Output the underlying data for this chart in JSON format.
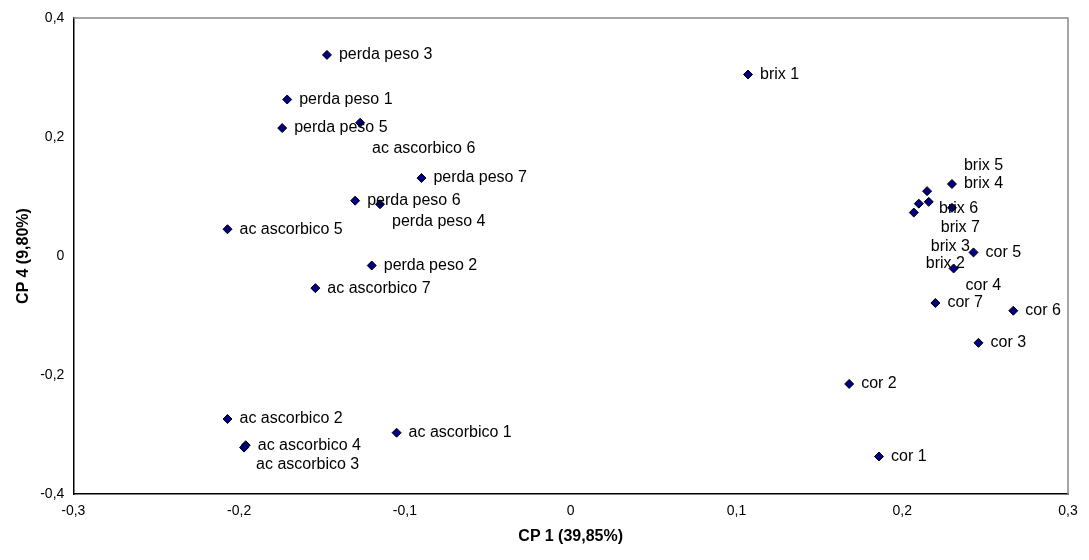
{
  "chart_data": {
    "type": "scatter",
    "xlabel": "CP 1 (39,85%)",
    "ylabel": "CP 4 (9,80%)",
    "series": [
      {
        "color": "#000080",
        "x": [
          -0.147,
          -0.171,
          -0.174,
          -0.127,
          -0.09,
          -0.13,
          -0.115,
          -0.207,
          -0.12,
          -0.154,
          0.107,
          0.23,
          0.215,
          0.216,
          0.21,
          0.207,
          0.23,
          0.243,
          0.231,
          0.22,
          0.267,
          0.246,
          0.168,
          0.186,
          -0.207,
          -0.196,
          -0.197,
          -0.105
        ],
        "values": [
          0.338,
          0.263,
          0.215,
          0.224,
          0.131,
          0.093,
          0.087,
          0.045,
          -0.016,
          -0.054,
          0.305,
          0.121,
          0.109,
          0.091,
          0.088,
          0.073,
          0.081,
          0.006,
          -0.021,
          -0.079,
          -0.092,
          -0.146,
          -0.215,
          -0.337,
          -0.274,
          -0.318,
          -0.322,
          -0.297
        ]
      }
    ],
    "annotations": [
      {
        "text": "perda peso 3",
        "x": -0.147,
        "y": 0.338
      },
      {
        "text": "perda peso 1",
        "x": -0.171,
        "y": 0.263
      },
      {
        "text": "perda peso 5",
        "x": -0.174,
        "y": 0.215
      },
      {
        "text": "ac ascorbico 6",
        "x": -0.127,
        "y": 0.224
      },
      {
        "text": "perda peso 7",
        "x": -0.09,
        "y": 0.131
      },
      {
        "text": "perda peso 6",
        "x": -0.13,
        "y": 0.093
      },
      {
        "text": "perda peso 4",
        "x": -0.115,
        "y": 0.087
      },
      {
        "text": "ac ascorbico 5",
        "x": -0.207,
        "y": 0.045
      },
      {
        "text": "perda peso 2",
        "x": -0.12,
        "y": -0.016
      },
      {
        "text": "ac ascorbico 7",
        "x": -0.154,
        "y": -0.054
      },
      {
        "text": "brix 1",
        "x": 0.107,
        "y": 0.305
      },
      {
        "text": "brix 4",
        "x": 0.23,
        "y": 0.121
      },
      {
        "text": "brix 6",
        "x": 0.215,
        "y": 0.109
      },
      {
        "text": "brix 7",
        "x": 0.216,
        "y": 0.091
      },
      {
        "text": "brix 3",
        "x": 0.21,
        "y": 0.088
      },
      {
        "text": "brix 2",
        "x": 0.207,
        "y": 0.073
      },
      {
        "text": "brix 5",
        "x": 0.23,
        "y": 0.081
      },
      {
        "text": "cor 5",
        "x": 0.243,
        "y": 0.006
      },
      {
        "text": "cor 4",
        "x": 0.231,
        "y": -0.021
      },
      {
        "text": "cor 7",
        "x": 0.22,
        "y": -0.079
      },
      {
        "text": "cor 6",
        "x": 0.267,
        "y": -0.092
      },
      {
        "text": "cor 3",
        "x": 0.246,
        "y": -0.146
      },
      {
        "text": "cor 2",
        "x": 0.168,
        "y": -0.215
      },
      {
        "text": "cor 1",
        "x": 0.186,
        "y": -0.337
      },
      {
        "text": "ac ascorbico 2",
        "x": -0.207,
        "y": -0.274
      },
      {
        "text": "ac ascorbico 4",
        "x": -0.196,
        "y": -0.318
      },
      {
        "text": "ac ascorbico 3",
        "x": -0.197,
        "y": -0.322
      },
      {
        "text": "ac ascorbico 1",
        "x": -0.105,
        "y": -0.297
      }
    ],
    "xlim": [
      -0.3,
      0.3
    ],
    "ylim": [
      -0.4,
      0.4
    ],
    "xticks": [
      {
        "value": -0.3,
        "label": "-0,3"
      },
      {
        "value": -0.2,
        "label": "-0,2"
      },
      {
        "value": -0.1,
        "label": "-0,1"
      },
      0,
      {
        "value": 0.1,
        "label": "0,1"
      },
      {
        "value": 0.2,
        "label": "0,2"
      },
      {
        "value": 0.3,
        "label": "0,3"
      }
    ],
    "yticks": [
      {
        "value": -0.4,
        "label": "-0,4"
      },
      {
        "value": -0.2,
        "label": "-0,2"
      },
      0,
      {
        "value": 0.2,
        "label": "0,2"
      },
      {
        "value": 0.4,
        "label": "0,4"
      }
    ],
    "grid": false,
    "legend": false,
    "marker": "diamond"
  }
}
